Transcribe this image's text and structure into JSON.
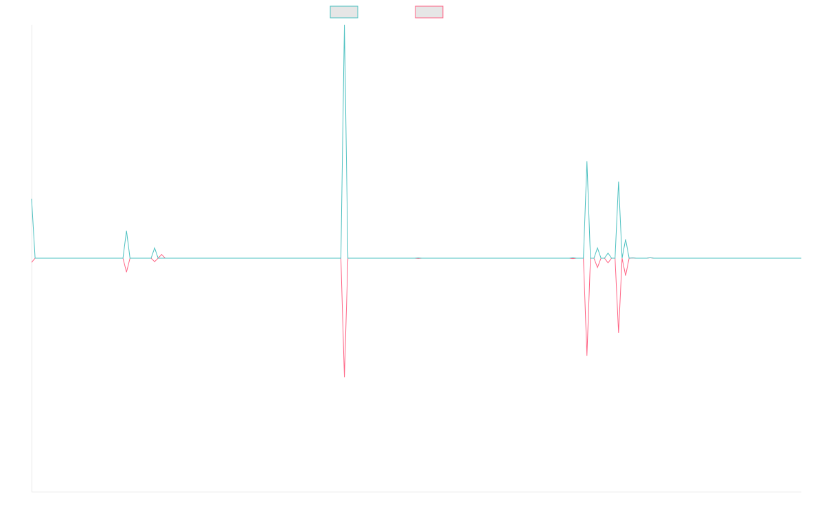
{
  "chart_data": {
    "type": "line",
    "title": "",
    "xlabel": "",
    "ylabel": "",
    "grid": false,
    "legend_position": "top-center",
    "x_range": [
      0,
      219
    ],
    "ylim": [
      -1,
      1
    ],
    "colors": {
      "series_0": "#4bc0c0",
      "series_1": "#ff6384",
      "legend_fill": "#e6e6e6",
      "axis": "#e6e6e6"
    },
    "series": [
      {
        "points": [
          [
            0,
            0.254
          ],
          [
            1,
            0.0
          ],
          [
            26,
            0.0
          ],
          [
            27,
            0.118
          ],
          [
            28,
            0.0
          ],
          [
            34,
            0.0
          ],
          [
            35,
            0.044
          ],
          [
            36,
            0.0
          ],
          [
            37,
            0.0
          ],
          [
            38,
            0.0
          ],
          [
            88,
            0.0
          ],
          [
            89,
            1.0
          ],
          [
            90,
            0.0
          ],
          [
            109,
            0.0
          ],
          [
            110,
            0.001
          ],
          [
            111,
            0.0
          ],
          [
            153,
            0.0
          ],
          [
            154,
            0.002
          ],
          [
            155,
            0.0
          ],
          [
            157,
            0.0
          ],
          [
            158,
            0.415
          ],
          [
            159,
            0.0
          ],
          [
            160,
            0.0
          ],
          [
            161,
            0.044
          ],
          [
            162,
            0.0
          ],
          [
            163,
            0.0
          ],
          [
            164,
            0.022
          ],
          [
            165,
            0.0
          ],
          [
            166,
            0.0
          ],
          [
            167,
            0.328
          ],
          [
            168,
            0.0
          ],
          [
            169,
            0.081
          ],
          [
            170,
            0.0
          ],
          [
            171,
            0.001
          ],
          [
            172,
            0.0
          ],
          [
            175,
            0.0
          ],
          [
            176,
            0.002
          ],
          [
            177,
            0.0
          ],
          [
            219,
            0.0
          ]
        ]
      },
      {
        "points": [
          [
            0,
            -0.018
          ],
          [
            1,
            0.0
          ],
          [
            26,
            0.0
          ],
          [
            27,
            -0.06
          ],
          [
            28,
            0.0
          ],
          [
            34,
            0.0
          ],
          [
            35,
            -0.015
          ],
          [
            36,
            0.0
          ],
          [
            37,
            0.016
          ],
          [
            38,
            0.0
          ],
          [
            88,
            0.0
          ],
          [
            89,
            -0.51
          ],
          [
            90,
            0.0
          ],
          [
            109,
            0.0
          ],
          [
            110,
            -0.001
          ],
          [
            111,
            0.0
          ],
          [
            153,
            0.0
          ],
          [
            154,
            -0.002
          ],
          [
            155,
            0.0
          ],
          [
            157,
            0.0
          ],
          [
            158,
            -0.418
          ],
          [
            159,
            0.0
          ],
          [
            160,
            0.0
          ],
          [
            161,
            -0.04
          ],
          [
            162,
            0.0
          ],
          [
            163,
            0.0
          ],
          [
            164,
            -0.02
          ],
          [
            165,
            0.0
          ],
          [
            166,
            0.0
          ],
          [
            167,
            -0.32
          ],
          [
            168,
            0.0
          ],
          [
            169,
            -0.075
          ],
          [
            170,
            0.0
          ],
          [
            171,
            0.001
          ],
          [
            172,
            0.0
          ],
          [
            175,
            0.0
          ],
          [
            176,
            0.002
          ],
          [
            177,
            0.0
          ],
          [
            219,
            0.0
          ]
        ]
      }
    ]
  }
}
